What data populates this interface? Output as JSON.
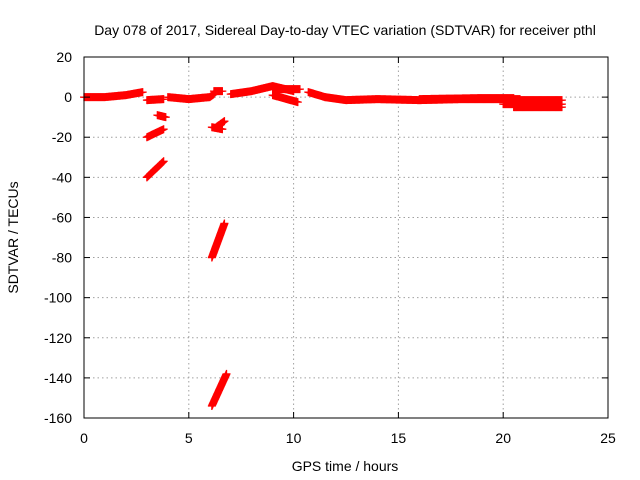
{
  "chart_data": {
    "type": "scatter",
    "title": "Day 078 of 2017, Sidereal Day-to-day VTEC variation (SDTVAR) for receiver pthl",
    "xlabel": "GPS time / hours",
    "ylabel": "SDTVAR / TECUs",
    "xlim": [
      0,
      25
    ],
    "ylim": [
      -160,
      20
    ],
    "xticks": [
      0,
      5,
      10,
      15,
      20,
      25
    ],
    "yticks": [
      20,
      0,
      -20,
      -40,
      -60,
      -80,
      -100,
      -120,
      -140,
      -160
    ],
    "grid": true,
    "legend": "none",
    "marker": "plus",
    "color": "#ff0000",
    "segments": [
      [
        [
          0.0,
          0.0
        ],
        [
          1.0,
          0.0
        ],
        [
          2.0,
          1.0
        ],
        [
          2.8,
          2.5
        ]
      ],
      [
        [
          3.0,
          -1.5
        ],
        [
          3.8,
          -1.0
        ]
      ],
      [
        [
          3.5,
          -9.0
        ],
        [
          3.9,
          -10.0
        ]
      ],
      [
        [
          3.0,
          -20.0
        ],
        [
          3.8,
          -16.0
        ]
      ],
      [
        [
          3.0,
          -40.0
        ],
        [
          3.8,
          -32.0
        ]
      ],
      [
        [
          4.0,
          0.0
        ],
        [
          5.0,
          -1.0
        ],
        [
          6.0,
          0.0
        ],
        [
          6.2,
          1.5
        ]
      ],
      [
        [
          6.2,
          3.0
        ],
        [
          6.6,
          3.0
        ]
      ],
      [
        [
          6.1,
          -15.0
        ],
        [
          6.6,
          -16.0
        ]
      ],
      [
        [
          6.3,
          -15.0
        ],
        [
          6.7,
          -12.0
        ]
      ],
      [
        [
          6.1,
          -80.0
        ],
        [
          6.7,
          -63.0
        ]
      ],
      [
        [
          6.1,
          -154.0
        ],
        [
          6.8,
          -138.0
        ]
      ],
      [
        [
          7.0,
          1.5
        ],
        [
          8.0,
          3.0
        ],
        [
          9.0,
          5.5
        ],
        [
          10.0,
          3.0
        ]
      ],
      [
        [
          9.0,
          1.0
        ],
        [
          10.2,
          -2.5
        ]
      ],
      [
        [
          9.0,
          4.0
        ],
        [
          10.3,
          4.0
        ]
      ],
      [
        [
          10.7,
          2.5
        ],
        [
          11.5,
          0.0
        ]
      ],
      [
        [
          11.5,
          0.0
        ],
        [
          12.5,
          -1.5
        ],
        [
          14.0,
          -1.0
        ],
        [
          16.0,
          -1.5
        ],
        [
          18.0,
          -1.0
        ],
        [
          20.0,
          -1.0
        ],
        [
          20.8,
          -1.0
        ]
      ],
      [
        [
          16.0,
          -1.0
        ],
        [
          19.0,
          -0.5
        ],
        [
          20.5,
          -0.5
        ]
      ],
      [
        [
          20.0,
          -3.5
        ],
        [
          21.5,
          -3.5
        ],
        [
          22.8,
          -3.5
        ]
      ],
      [
        [
          20.5,
          -1.5
        ],
        [
          22.8,
          -1.5
        ]
      ],
      [
        [
          20.5,
          -5.0
        ],
        [
          22.8,
          -5.0
        ]
      ]
    ]
  }
}
